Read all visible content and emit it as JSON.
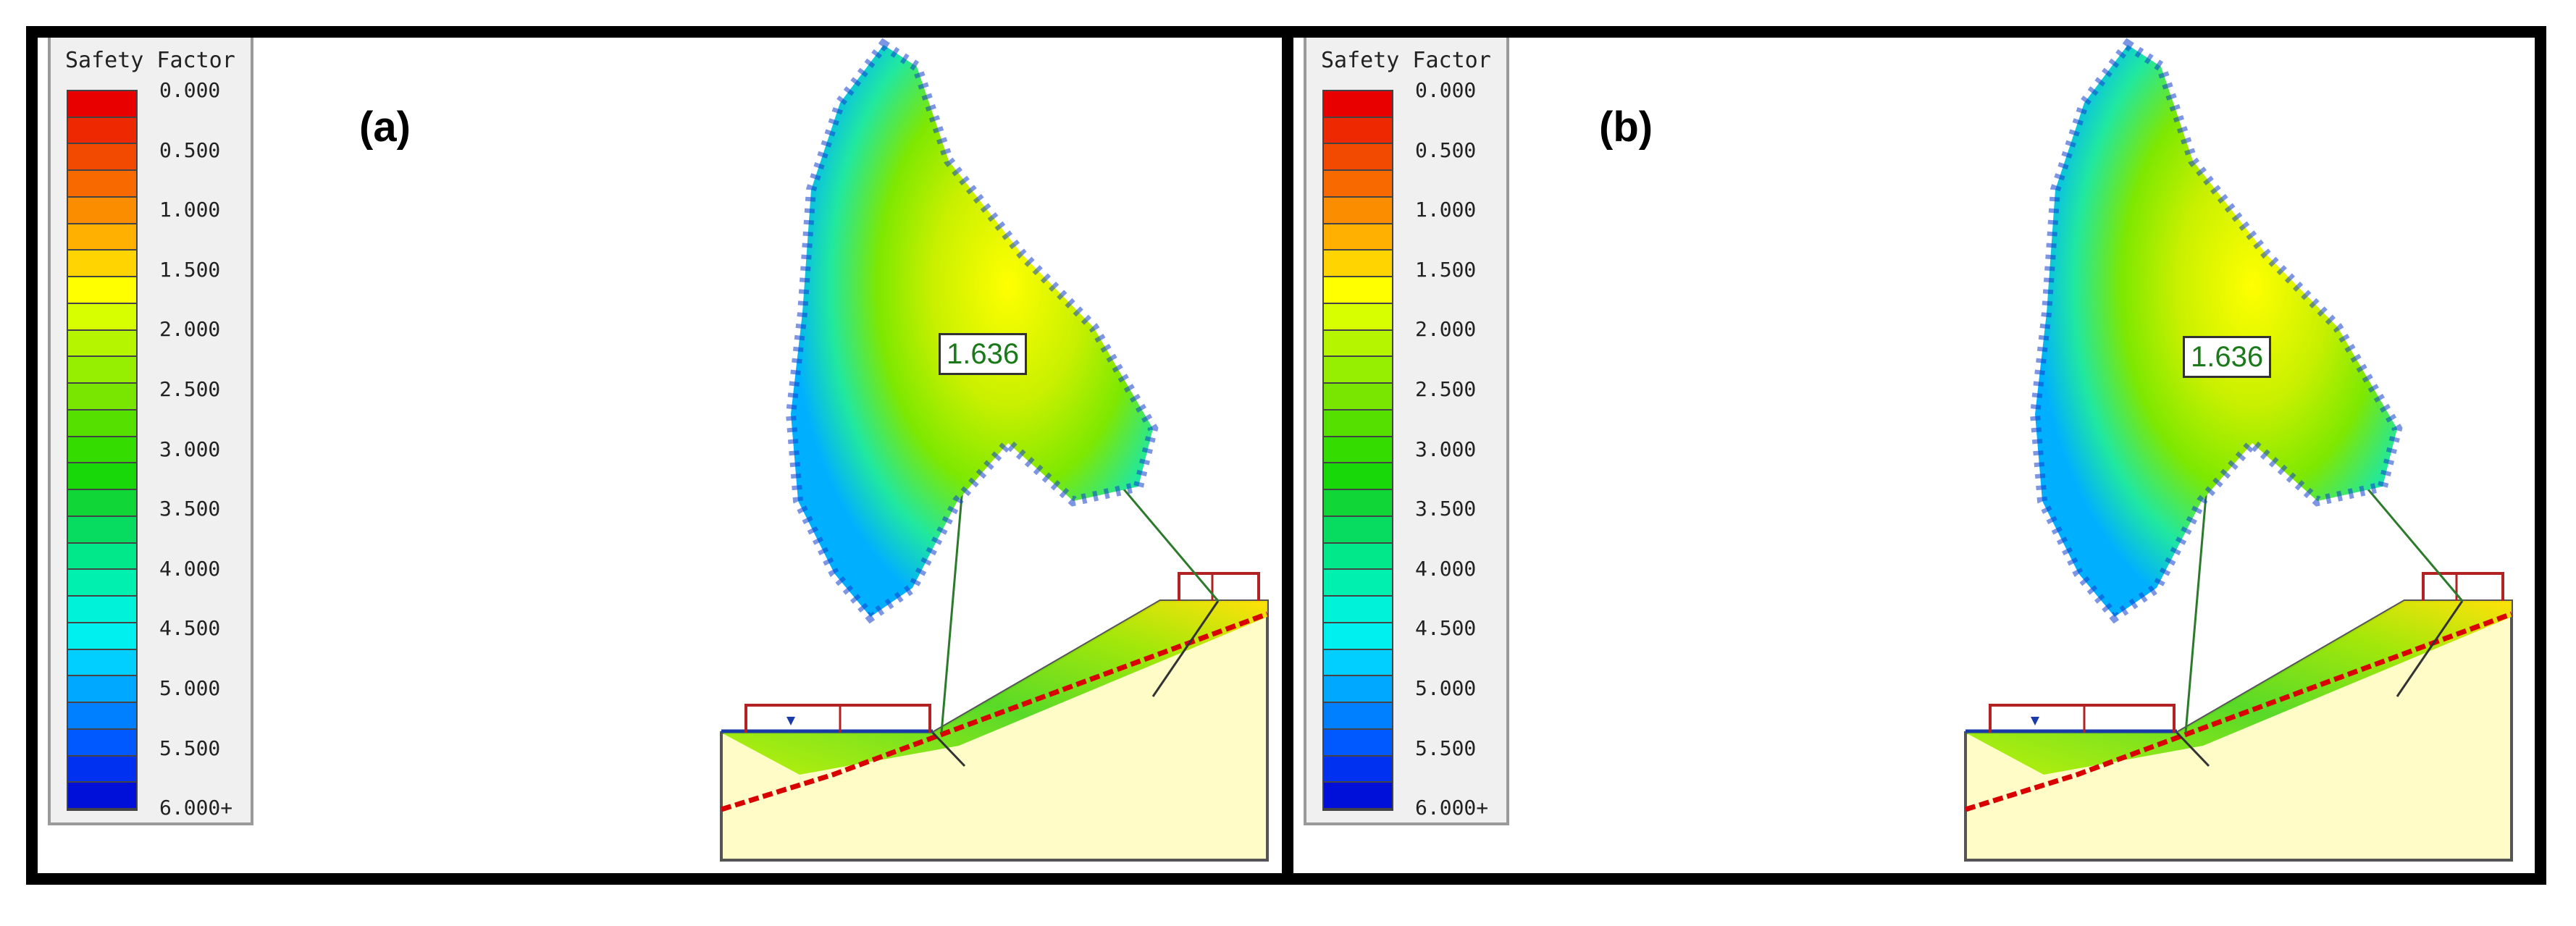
{
  "panels": [
    {
      "id": "a",
      "label": "(a)",
      "legend": {
        "title": "Safety Factor",
        "ticks": [
          "0.000",
          "0.500",
          "1.000",
          "1.500",
          "2.000",
          "2.500",
          "3.000",
          "3.500",
          "4.000",
          "4.500",
          "5.000",
          "5.500",
          "6.000+"
        ]
      },
      "minimum_safety_factor": "1.636"
    },
    {
      "id": "b",
      "label": "(b)",
      "legend": {
        "title": "Safety Factor",
        "ticks": [
          "0.000",
          "0.500",
          "1.000",
          "1.500",
          "2.000",
          "2.500",
          "3.000",
          "3.500",
          "4.000",
          "4.500",
          "5.000",
          "5.500",
          "6.000+"
        ]
      },
      "minimum_safety_factor": "1.636"
    }
  ],
  "legend_colors": [
    "#e80000",
    "#ee2800",
    "#f24a00",
    "#f86a00",
    "#fb8e00",
    "#ffb000",
    "#ffd400",
    "#ffff00",
    "#d7ff00",
    "#b5f500",
    "#96ee00",
    "#78e600",
    "#56e000",
    "#34dc00",
    "#19d80a",
    "#10d638",
    "#08dc60",
    "#00e88a",
    "#00f0b0",
    "#00f2d8",
    "#00f0f0",
    "#00cfff",
    "#00a8ff",
    "#0080ff",
    "#0058ff",
    "#0030f0",
    "#0010d8"
  ],
  "colors": {
    "slope_fill": "#fffcc8",
    "support_outline": "#b22222",
    "leader_line": "#2d7a2d",
    "water_line": "#1a3aa8",
    "failure_red": "#d80000"
  }
}
